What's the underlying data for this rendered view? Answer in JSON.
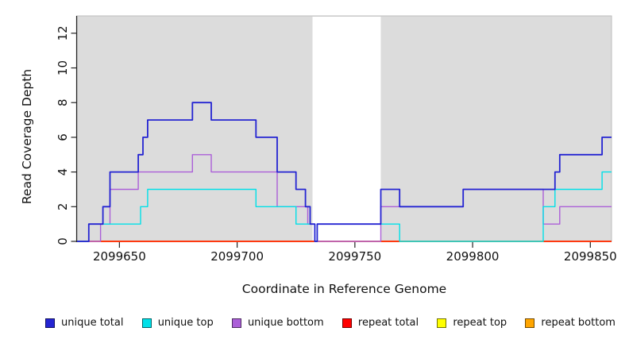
{
  "chart_data": {
    "type": "line",
    "step": true,
    "title": "",
    "xlabel": "Coordinate in Reference Genome",
    "ylabel": "Read Coverage Depth",
    "xlim": [
      2099632,
      2099859
    ],
    "ylim": [
      0,
      13
    ],
    "x_ticks": [
      2099650,
      2099700,
      2099750,
      2099800,
      2099850
    ],
    "y_ticks": [
      0,
      2,
      4,
      6,
      8,
      10,
      12
    ],
    "grid": false,
    "plot_background": "#DCDCDC",
    "plot_border_color": "#BDBDBD",
    "axis_color": "#222222",
    "band": {
      "x0": 2099732,
      "x1": 2099761,
      "color": "#FFFFFF"
    },
    "legend_position": "bottom",
    "series": [
      {
        "name": "repeat bottom",
        "color": "#FFA500",
        "lw": 1.4,
        "points": [
          [
            2099632,
            0
          ]
        ]
      },
      {
        "name": "repeat top",
        "color": "#FFFF00",
        "lw": 1.4,
        "points": [
          [
            2099632,
            0
          ]
        ]
      },
      {
        "name": "repeat total",
        "color": "#FF0000",
        "lw": 1.4,
        "points": [
          [
            2099632,
            0
          ]
        ]
      },
      {
        "name": "unique bottom",
        "color": "#AB5FD8",
        "lw": 1.4,
        "points": [
          [
            2099632,
            0
          ],
          [
            2099642,
            1
          ],
          [
            2099646,
            3
          ],
          [
            2099658,
            4
          ],
          [
            2099681,
            5
          ],
          [
            2099689,
            4
          ],
          [
            2099717,
            2
          ],
          [
            2099730,
            1
          ],
          [
            2099733,
            0
          ],
          [
            2099761,
            2
          ],
          [
            2099796,
            3
          ],
          [
            2099830,
            1
          ],
          [
            2099837,
            2
          ]
        ]
      },
      {
        "name": "unique top",
        "color": "#00E0E8",
        "lw": 1.4,
        "points": [
          [
            2099632,
            0
          ],
          [
            2099637,
            1
          ],
          [
            2099659,
            2
          ],
          [
            2099662,
            3
          ],
          [
            2099708,
            2
          ],
          [
            2099725,
            1
          ],
          [
            2099733,
            0
          ],
          [
            2099734,
            1
          ],
          [
            2099769,
            0
          ],
          [
            2099830,
            2
          ],
          [
            2099835,
            3
          ],
          [
            2099855,
            4
          ]
        ]
      },
      {
        "name": "unique total",
        "color": "#2424D2",
        "lw": 1.8,
        "points": [
          [
            2099632,
            0
          ],
          [
            2099637,
            1
          ],
          [
            2099643,
            2
          ],
          [
            2099646,
            4
          ],
          [
            2099658,
            5
          ],
          [
            2099660,
            6
          ],
          [
            2099662,
            7
          ],
          [
            2099681,
            8
          ],
          [
            2099689,
            7
          ],
          [
            2099708,
            6
          ],
          [
            2099717,
            4
          ],
          [
            2099725,
            3
          ],
          [
            2099729,
            2
          ],
          [
            2099731,
            1
          ],
          [
            2099733,
            0
          ],
          [
            2099734,
            1
          ],
          [
            2099761,
            3
          ],
          [
            2099769,
            2
          ],
          [
            2099796,
            3
          ],
          [
            2099835,
            4
          ],
          [
            2099837,
            5
          ],
          [
            2099855,
            6
          ]
        ]
      }
    ],
    "legend": [
      {
        "label": "unique total",
        "color": "#2424D2"
      },
      {
        "label": "unique top",
        "color": "#00E0E8"
      },
      {
        "label": "unique bottom",
        "color": "#AB5FD8"
      },
      {
        "label": "repeat total",
        "color": "#FF0000"
      },
      {
        "label": "repeat top",
        "color": "#FFFF00"
      },
      {
        "label": "repeat bottom",
        "color": "#FFA500"
      }
    ]
  }
}
